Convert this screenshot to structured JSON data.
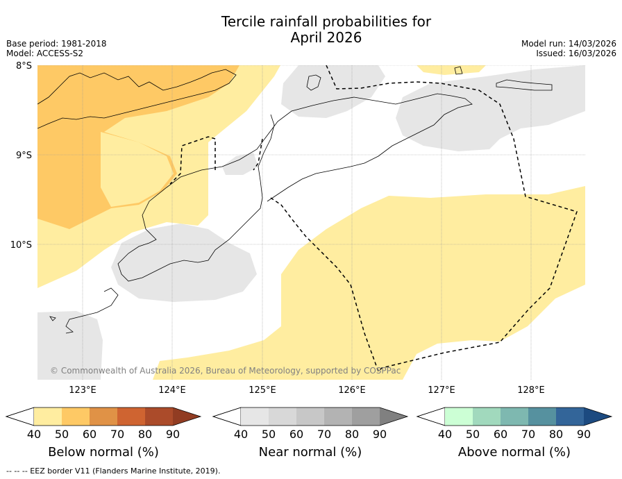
{
  "header": {
    "title_line1": "Tercile rainfall probabilities for",
    "title_line2": "April 2026",
    "base_period": "Base period: 1981-2018",
    "model": "Model: ACCESS-S2",
    "model_run": "Model run: 14/03/2026",
    "issued": "Issued: 16/03/2026"
  },
  "map": {
    "lat_labels": [
      "8°S",
      "9°S",
      "10°S"
    ],
    "lon_labels": [
      "123°E",
      "124°E",
      "125°E",
      "126°E",
      "127°E",
      "128°E"
    ],
    "copyright": "© Commonwealth of Australia 2026, Bureau of Meteorology, supported by COSPPac"
  },
  "colorbars": [
    {
      "name": "below-normal",
      "label": "Below normal (%)",
      "ticks": [
        "40",
        "50",
        "60",
        "70",
        "80",
        "90"
      ],
      "colors": [
        "#ffeda0",
        "#fec965",
        "#e09246",
        "#cf6431",
        "#ab4b2a",
        "#913c22"
      ]
    },
    {
      "name": "near-normal",
      "label": "Near normal (%)",
      "ticks": [
        "40",
        "50",
        "60",
        "70",
        "80",
        "90"
      ],
      "colors": [
        "#e6e6e6",
        "#d8d8d8",
        "#c7c7c7",
        "#b3b3b3",
        "#9f9f9f",
        "#808080"
      ]
    },
    {
      "name": "above-normal",
      "label": "Above normal (%)",
      "ticks": [
        "40",
        "50",
        "60",
        "70",
        "80",
        "90"
      ],
      "colors": [
        "#ccffd5",
        "#a1d9bd",
        "#7eb8b0",
        "#56919f",
        "#336599",
        "#1c4a80"
      ]
    }
  ],
  "footer": {
    "eez_legend": "--  --  -- EEZ border V11 (Flanders Marine Institute, 2019)."
  }
}
